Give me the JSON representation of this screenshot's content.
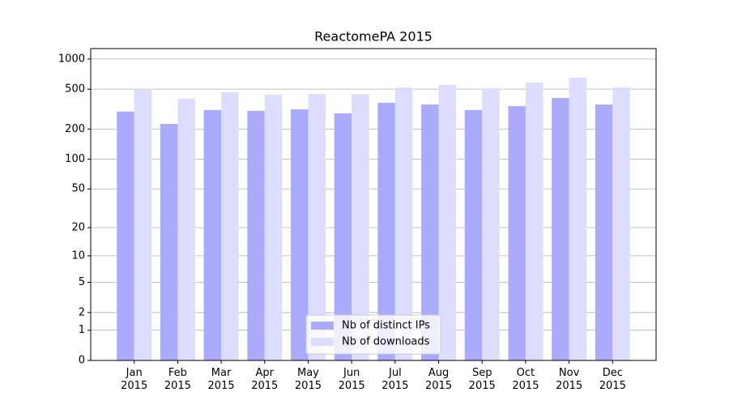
{
  "chart_data": {
    "type": "bar",
    "title": "ReactomePA 2015",
    "categories": [
      "Jan\n2015",
      "Feb\n2015",
      "Mar\n2015",
      "Apr\n2015",
      "May\n2015",
      "Jun\n2015",
      "Jul\n2015",
      "Aug\n2015",
      "Sep\n2015",
      "Oct\n2015",
      "Nov\n2015",
      "Dec\n2015"
    ],
    "series": [
      {
        "name": "Nb of distinct IPs",
        "color": "#aaaaff",
        "values": [
          299,
          225,
          310,
          304,
          315,
          287,
          366,
          352,
          310,
          339,
          409,
          352
        ]
      },
      {
        "name": "Nb of downloads",
        "color": "#ddddff",
        "values": [
          493,
          402,
          466,
          441,
          449,
          447,
          521,
          551,
          511,
          583,
          652,
          521
        ]
      }
    ],
    "y_scale": "log1p",
    "ylim": [
      0,
      1270
    ],
    "yticks": [
      0,
      1,
      2,
      5,
      10,
      20,
      50,
      100,
      200,
      500,
      1000
    ],
    "grid": true,
    "legend": "lower center"
  }
}
